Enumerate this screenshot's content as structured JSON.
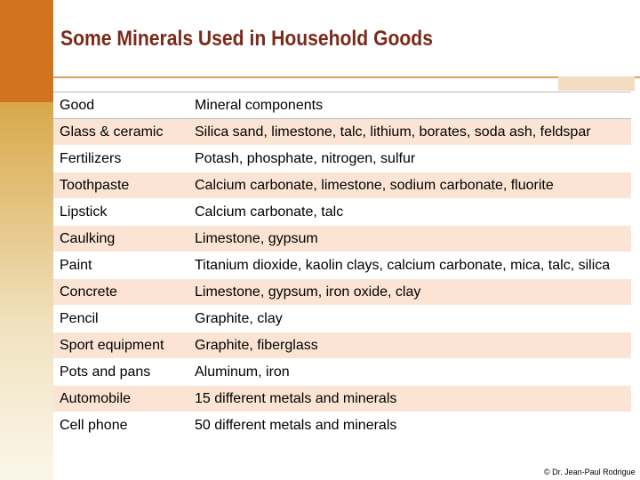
{
  "header": {
    "title": "Some Minerals Used in Household Goods"
  },
  "table": {
    "columns": [
      "Good",
      "Mineral components"
    ],
    "rows": [
      [
        "Glass & ceramic",
        "Silica sand, limestone, talc, lithium, borates, soda ash, feldspar"
      ],
      [
        "Fertilizers",
        "Potash, phosphate, nitrogen, sulfur"
      ],
      [
        "Toothpaste",
        "Calcium carbonate, limestone, sodium carbonate, fluorite"
      ],
      [
        "Lipstick",
        "Calcium carbonate, talc"
      ],
      [
        "Caulking",
        "Limestone, gypsum"
      ],
      [
        "Paint",
        "Titanium dioxide, kaolin clays, calcium carbonate, mica, talc, silica"
      ],
      [
        "Concrete",
        "Limestone, gypsum, iron oxide, clay"
      ],
      [
        "Pencil",
        "Graphite, clay"
      ],
      [
        "Sport equipment",
        "Graphite, fiberglass"
      ],
      [
        "Pots and pans",
        "Aluminum, iron"
      ],
      [
        "Automobile",
        "15 different metals and minerals"
      ],
      [
        "Cell phone",
        "50 different metals and minerals"
      ]
    ]
  },
  "footer": {
    "credit": "© Dr. Jean-Paul Rodrigue"
  }
}
